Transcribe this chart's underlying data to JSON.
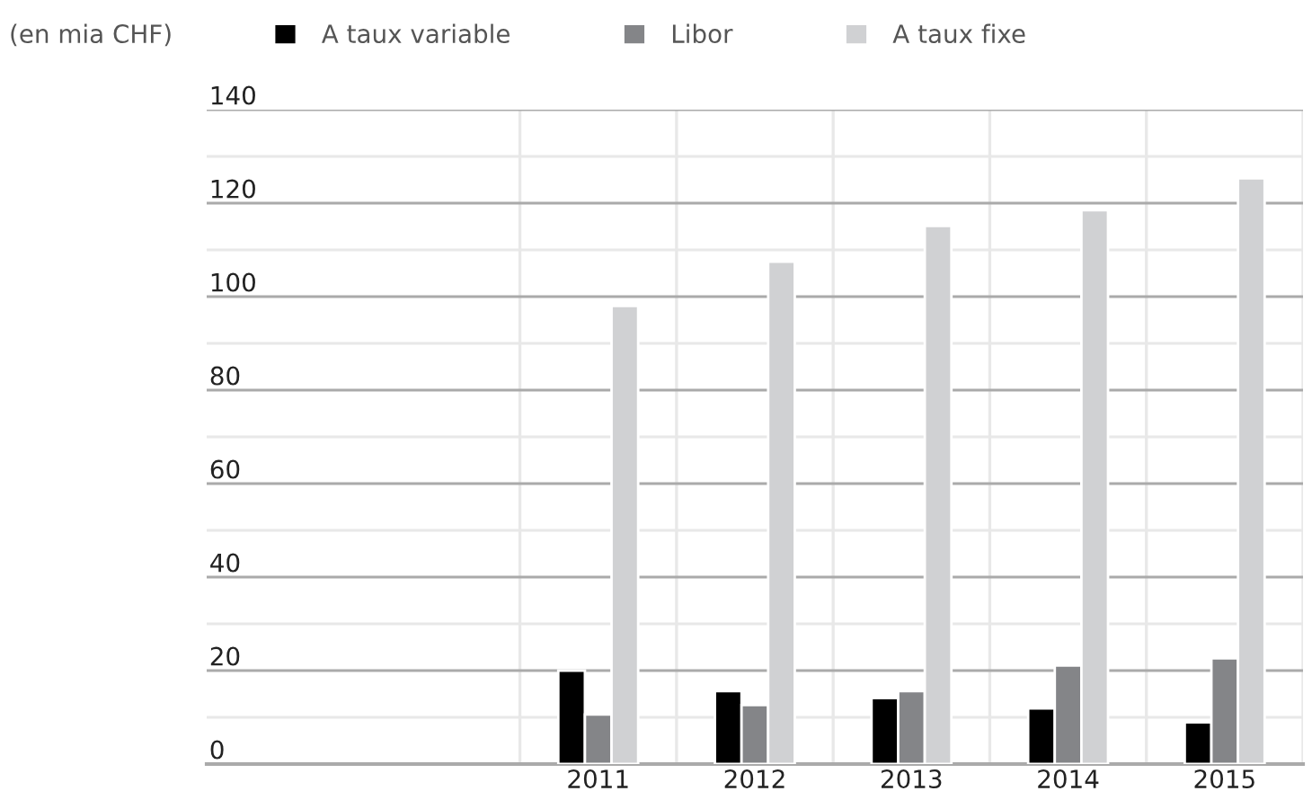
{
  "chart_data": {
    "type": "bar",
    "ylabel": "(en mia CHF)",
    "categories": [
      null,
      null,
      "2011",
      "2012",
      "2013",
      "2014",
      "2015"
    ],
    "series": [
      {
        "name": "A taux variable",
        "color": "#000000",
        "values": [
          null,
          null,
          20.0,
          15.6,
          14.1,
          11.9,
          8.9
        ]
      },
      {
        "name": "Libor",
        "color": "#848588",
        "values": [
          null,
          null,
          10.6,
          12.6,
          15.6,
          21.1,
          22.6
        ]
      },
      {
        "name": "A taux fixe",
        "color": "#d0d1d3",
        "values": [
          null,
          null,
          98.0,
          107.5,
          115.1,
          118.5,
          125.3
        ]
      }
    ],
    "ylim": [
      0,
      140
    ],
    "yticks": [
      0,
      {
        "value": 10,
        "label": null
      },
      20,
      {
        "value": 30,
        "label": null
      },
      40,
      {
        "value": 50,
        "label": null
      },
      60,
      {
        "value": 70,
        "label": null
      },
      80,
      {
        "value": 90,
        "label": null
      },
      100,
      {
        "value": 110,
        "label": null
      },
      120,
      {
        "value": 130,
        "label": null
      },
      140
    ],
    "grid": true,
    "legend": "top"
  }
}
